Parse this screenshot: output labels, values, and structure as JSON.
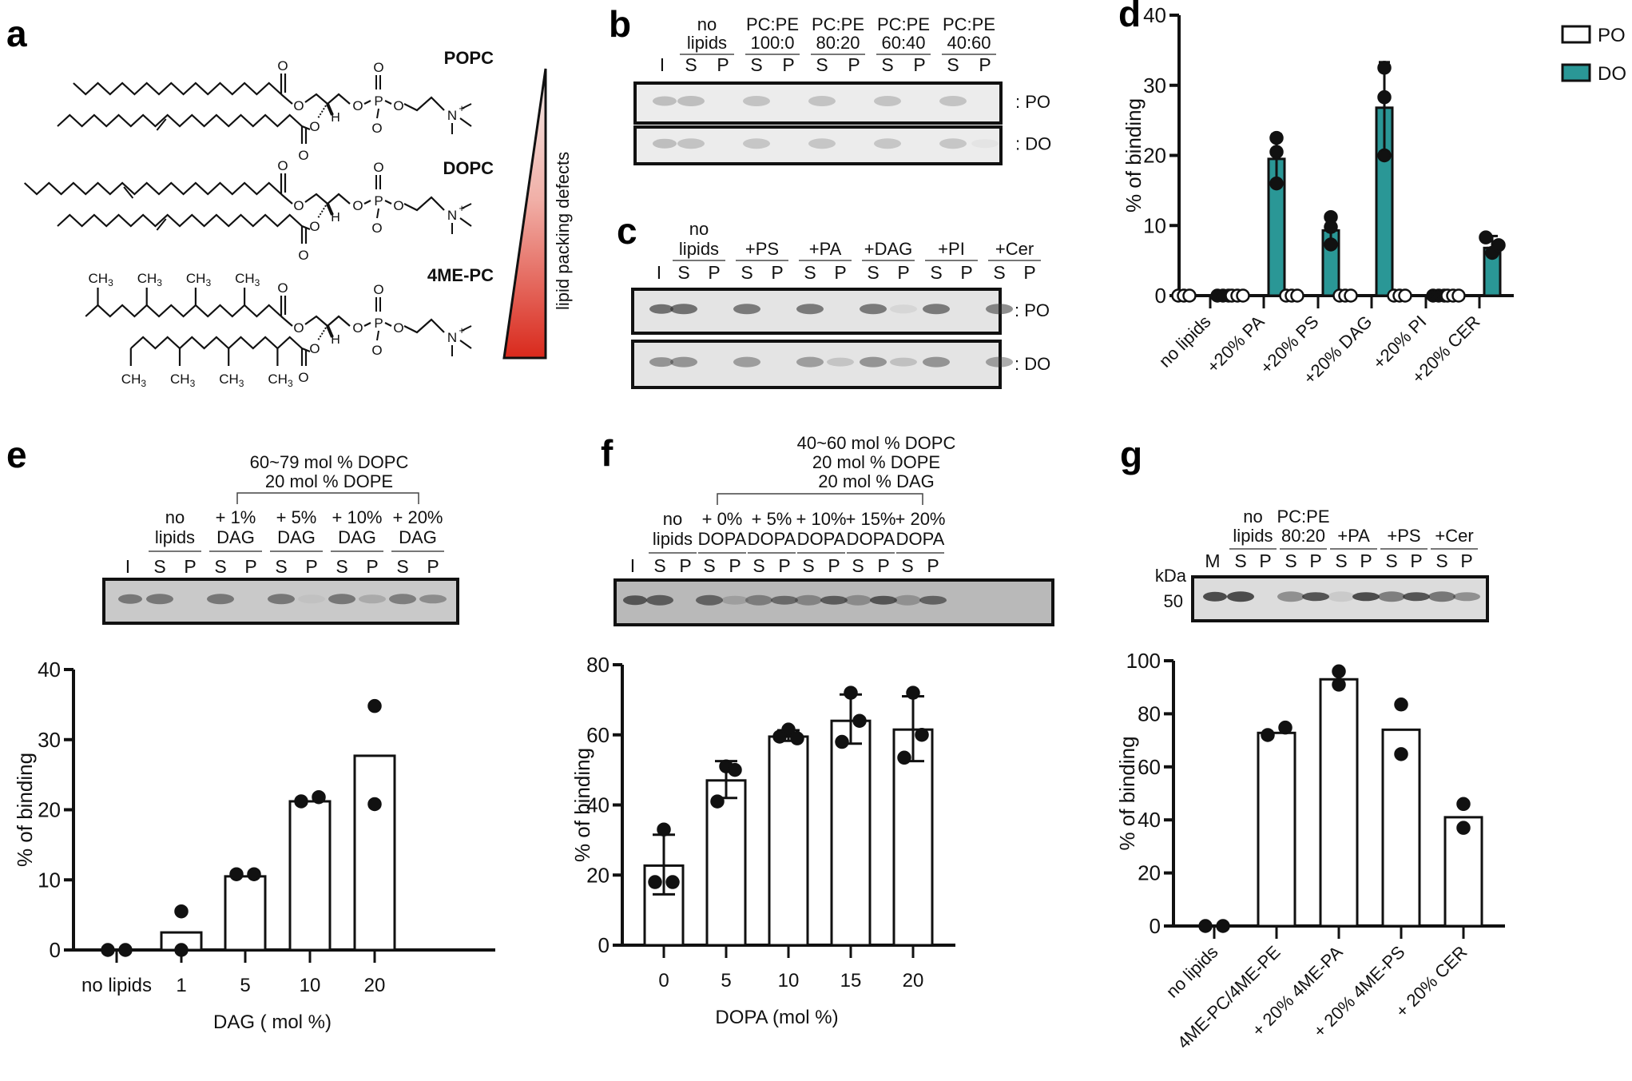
{
  "figure": {
    "panel_labels": [
      "a",
      "b",
      "c",
      "d",
      "e",
      "f",
      "g"
    ]
  },
  "panel_a": {
    "lipids": [
      {
        "name": "POPC"
      },
      {
        "name": "DOPC"
      },
      {
        "name": "4ME-PC"
      }
    ],
    "gradient_label": "lipid packing defects",
    "chem_labels": {
      "O": "O",
      "P": "P",
      "N": "N",
      "H": "H",
      "CH3": "CH",
      "sub3": "3",
      "plus": "+",
      "minus": "-"
    }
  },
  "panel_b": {
    "input_lane": "I",
    "groups": [
      {
        "line1": "no",
        "line2": "lipids"
      },
      {
        "line1": "PC:PE",
        "line2": "100:0"
      },
      {
        "line1": "PC:PE",
        "line2": "80:20"
      },
      {
        "line1": "PC:PE",
        "line2": "60:40"
      },
      {
        "line1": "PC:PE",
        "line2": "40:60"
      }
    ],
    "lane_s": "S",
    "lane_p": "P",
    "rows": [
      ": PO",
      ": DO"
    ]
  },
  "panel_c": {
    "input_lane": "I",
    "groups": [
      {
        "line1": "no",
        "line2": "lipids"
      },
      {
        "line1": "",
        "line2": "+PS"
      },
      {
        "line1": "",
        "line2": "+PA"
      },
      {
        "line1": "",
        "line2": "+DAG"
      },
      {
        "line1": "",
        "line2": "+PI"
      },
      {
        "line1": "",
        "line2": "+Cer"
      }
    ],
    "lane_s": "S",
    "lane_p": "P",
    "rows": [
      ": PO",
      ": DO"
    ]
  },
  "panel_e": {
    "header": [
      "60~79 mol % DOPC",
      "20 mol % DOPE"
    ],
    "input_lane": "I",
    "groups": [
      {
        "line1": "no",
        "line2": "lipids"
      },
      {
        "line1": "+ 1%",
        "line2": "DAG"
      },
      {
        "line1": "+ 5%",
        "line2": "DAG"
      },
      {
        "line1": "+ 10%",
        "line2": "DAG"
      },
      {
        "line1": "+ 20%",
        "line2": "DAG"
      }
    ],
    "lane_s": "S",
    "lane_p": "P"
  },
  "panel_f": {
    "header": [
      "40~60 mol % DOPC",
      "20 mol % DOPE",
      "20 mol % DAG"
    ],
    "input_lane": "I",
    "groups": [
      {
        "line1": "no",
        "line2": "lipids"
      },
      {
        "line1": "+ 0%",
        "line2": "DOPA"
      },
      {
        "line1": "+ 5%",
        "line2": "DOPA"
      },
      {
        "line1": "+ 10%",
        "line2": "DOPA"
      },
      {
        "line1": "+ 15%",
        "line2": "DOPA"
      },
      {
        "line1": "+ 20%",
        "line2": "DOPA"
      }
    ],
    "lane_s": "S",
    "lane_p": "P"
  },
  "panel_g": {
    "marker_lane": "M",
    "kda_label": "kDa",
    "kda_value": "50",
    "groups": [
      {
        "line1": "no",
        "line2": "lipids"
      },
      {
        "line1": "PC:PE",
        "line2": "80:20"
      },
      {
        "line1": "",
        "line2": "+PA"
      },
      {
        "line1": "",
        "line2": "+PS"
      },
      {
        "line1": "",
        "line2": "+Cer"
      }
    ],
    "lane_s": "S",
    "lane_p": "P"
  },
  "colors": {
    "teal": "#2a9796",
    "gradient_top": "#f3e6e4",
    "gradient_bottom": "#d9291c",
    "gel_bg": "#e6e6e6",
    "gel_bg_dark": "#c9c9c9"
  },
  "chart_data": [
    {
      "id": "d",
      "type": "bar",
      "title": "",
      "xlabel": "",
      "ylabel": "% of binding",
      "ylim": [
        0,
        40
      ],
      "yticks": [
        0,
        10,
        20,
        30,
        40
      ],
      "categories": [
        "no lipids",
        "+20% PA",
        "+20% PS",
        "+20% DAG",
        "+20% PI",
        "+20% CER"
      ],
      "legend": {
        "position": "top-right",
        "entries": [
          "PO",
          "DO"
        ]
      },
      "series": [
        {
          "name": "PO",
          "values": [
            0,
            0,
            0,
            0,
            0,
            0
          ],
          "points": [
            [
              0,
              0,
              0
            ],
            [
              0,
              0,
              0
            ],
            [
              0,
              0,
              0
            ],
            [
              0,
              0,
              0
            ],
            [
              0,
              0,
              0
            ],
            [
              0,
              0,
              0
            ]
          ],
          "err_low": [
            0,
            0,
            0,
            0,
            0,
            0
          ],
          "err_high": [
            0,
            0,
            0,
            0,
            0,
            0
          ]
        },
        {
          "name": "DO",
          "values": [
            0,
            19.5,
            9.3,
            26.8,
            0,
            6.8
          ],
          "points": [
            [
              0,
              0,
              0
            ],
            [
              22.5,
              20.5,
              16.0
            ],
            [
              11.2,
              9.8,
              7.3
            ],
            [
              32.5,
              28.3,
              20.0
            ],
            [
              0,
              0,
              0
            ],
            [
              8.3,
              6.1,
              7.2
            ]
          ],
          "err_low": [
            0,
            16.2,
            7.3,
            20.5,
            0,
            6.8
          ],
          "err_high": [
            0,
            23.0,
            11.5,
            33.3,
            0,
            8.5
          ]
        }
      ]
    },
    {
      "id": "e",
      "type": "bar",
      "title": "",
      "xlabel": "DAG ( mol %)",
      "ylabel": "% of binding",
      "ylim": [
        0,
        40
      ],
      "yticks": [
        0,
        10,
        20,
        30,
        40
      ],
      "categories": [
        "no lipids",
        "1",
        "5",
        "10",
        "20"
      ],
      "values": [
        0,
        2.5,
        10.5,
        21.2,
        27.7
      ],
      "points": [
        [
          0,
          0
        ],
        [
          5.5,
          0
        ],
        [
          10.8,
          10.8
        ],
        [
          21.2,
          21.8
        ],
        [
          34.8,
          20.8
        ]
      ]
    },
    {
      "id": "f",
      "type": "bar",
      "title": "",
      "xlabel": "DOPA (mol %)",
      "ylabel": "% of binding",
      "ylim": [
        0,
        80
      ],
      "yticks": [
        0,
        20,
        40,
        60,
        80
      ],
      "categories": [
        "0",
        "5",
        "10",
        "15",
        "20"
      ],
      "values": [
        22.7,
        47.0,
        59.5,
        64.0,
        61.5
      ],
      "points": [
        [
          33.0,
          18.0,
          18.0
        ],
        [
          51.0,
          50.0,
          41.0
        ],
        [
          61.5,
          59.0,
          59.5
        ],
        [
          72.0,
          64.0,
          58.0
        ],
        [
          72.0,
          60.0,
          53.5
        ]
      ],
      "err_low": [
        14.5,
        42.0,
        58.3,
        57.5,
        52.5
      ],
      "err_high": [
        31.5,
        52.5,
        61.3,
        71.5,
        71.0
      ]
    },
    {
      "id": "g",
      "type": "bar",
      "title": "",
      "xlabel": "",
      "ylabel": "% of binding",
      "ylim": [
        0,
        100
      ],
      "yticks": [
        0,
        20,
        40,
        60,
        80,
        100
      ],
      "categories": [
        "no lipids",
        "4ME-PC/4ME-PE",
        "+ 20% 4ME-PA",
        "+ 20% 4ME-PS",
        "+ 20% CER"
      ],
      "values": [
        0,
        72.8,
        93.0,
        74.0,
        41.0
      ],
      "points": [
        [
          0,
          0
        ],
        [
          72.0,
          74.8
        ],
        [
          96.0,
          91.0
        ],
        [
          83.5,
          64.8
        ],
        [
          46.0,
          37.0
        ]
      ]
    }
  ]
}
